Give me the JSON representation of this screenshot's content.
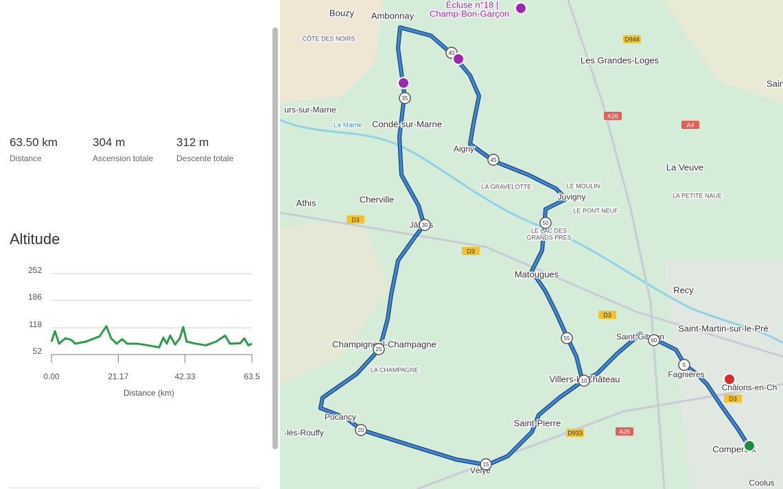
{
  "stats": [
    {
      "value": "63.50 km",
      "label": "Distance"
    },
    {
      "value": "304 m",
      "label": "Ascension totale"
    },
    {
      "value": "312 m",
      "label": "Descente totale"
    }
  ],
  "chart_data": {
    "type": "line",
    "title": "Altitude",
    "x_label": "Distance (km)",
    "color": "#2a9d47",
    "x": [
      0,
      1.09,
      2.39,
      4.35,
      6.09,
      7.61,
      10.87,
      15.22,
      17.4,
      18.92,
      20.66,
      22.4,
      23.92,
      27.18,
      30.45,
      34.14,
      35.45,
      36.53,
      37.62,
      39.14,
      40.66,
      41.75,
      42.84,
      45.67,
      48.93,
      52.19,
      55.02,
      56.54,
      59.8,
      61.1,
      62.41,
      63.5
    ],
    "values": [
      84,
      110,
      79,
      92,
      89,
      79,
      84,
      97,
      122,
      92,
      79,
      90,
      79,
      79,
      75,
      70,
      94,
      79,
      99,
      77,
      92,
      120,
      84,
      79,
      75,
      84,
      99,
      79,
      80,
      92,
      75,
      79
    ],
    "xlim": [
      0,
      63.5
    ],
    "xticks": [
      {
        "value": 0,
        "label": "0.00"
      },
      21.17,
      42.33,
      63.5
    ],
    "ylim": [
      52,
      252
    ],
    "yticks": [
      52,
      118,
      186,
      252
    ],
    "grid": true
  },
  "map": {
    "labels": [
      "Bouzy",
      "Ambonnay",
      "Écluse n°18 |",
      "Champ-Bon-Garçon",
      "CÔTE DES NOIRS",
      "Les Grandes-Loges",
      "urs-sur-Marne",
      "La Marne",
      "Condé-sur-Marne",
      "Aigny",
      "La Veuve",
      "LA GRAVELOTTE",
      "LE MOULIN",
      "Juvigny",
      "LE PONT NEUF",
      "LA PETITE NAUE",
      "Athis",
      "Cherville",
      "Jâlons",
      "LE LAC DES",
      "GRANDS PRÉS",
      "Matougues",
      "Recy",
      "Saint-Martin-sur-le-Pré",
      "Saint-Gibrien",
      "Champigneul-Champagne",
      "LA CHAMPAGNE",
      "Villers-le-Château",
      "Fagnières",
      "Châlons-en-Ch",
      "Pocancy",
      "-lès-Rouffy",
      "Saint-Pierre",
      "Vélye",
      "Compertrix",
      "Coolus",
      "Sain"
    ],
    "road_signs": [
      "D944",
      "A26",
      "A4",
      "D3",
      "D3",
      "D3",
      "D933",
      "A26",
      "D3"
    ],
    "route_markers": [
      40,
      35,
      45,
      50,
      30,
      55,
      60,
      5,
      10,
      25,
      20,
      15
    ]
  }
}
